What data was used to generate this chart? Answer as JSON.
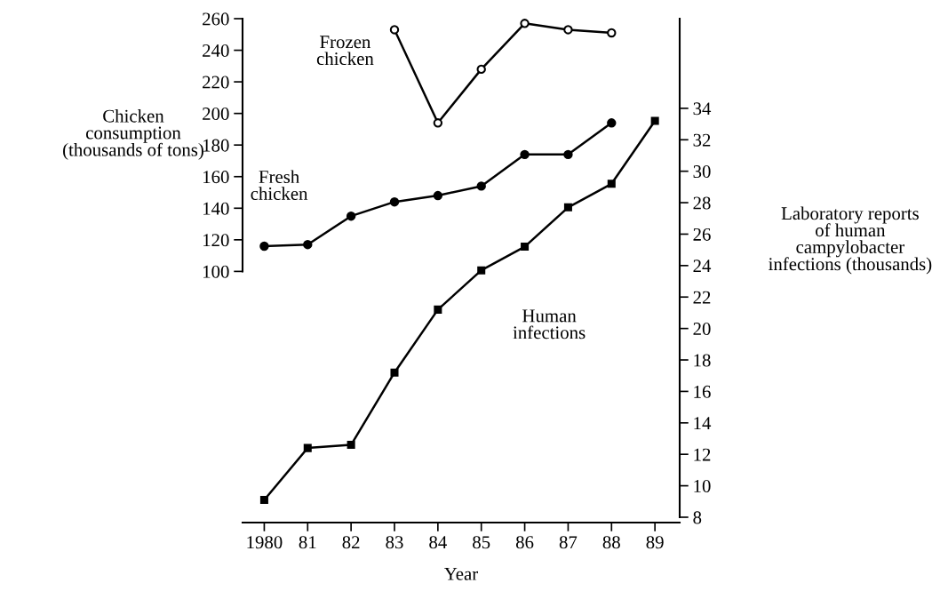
{
  "chart_data": {
    "type": "line",
    "x": [
      1980,
      1981,
      1982,
      1983,
      1984,
      1985,
      1986,
      1987,
      1988,
      1989
    ],
    "xlabel": "Year",
    "ylabel": "Chicken consumption (thousands of tons)",
    "y2label": "Laboratory reports of human campylobacter infections (thousands)",
    "xlim": [
      1979.5,
      1989.57
    ],
    "xticks": [
      {
        "value": 1980,
        "label": "1980"
      },
      {
        "value": 1981,
        "label": "81"
      },
      {
        "value": 1982,
        "label": "82"
      },
      {
        "value": 1983,
        "label": "83"
      },
      {
        "value": 1984,
        "label": "84"
      },
      {
        "value": 1985,
        "label": "85"
      },
      {
        "value": 1986,
        "label": "86"
      },
      {
        "value": 1987,
        "label": "87"
      },
      {
        "value": 1988,
        "label": "88"
      },
      {
        "value": 1989,
        "label": "89"
      }
    ],
    "ylim": [
      -59,
      260
    ],
    "yticks": [
      100,
      120,
      140,
      160,
      180,
      200,
      220,
      240,
      260
    ],
    "y2lim": [
      7.66,
      39.7
    ],
    "y2ticks": [
      8,
      10,
      12,
      14,
      16,
      18,
      20,
      22,
      24,
      26,
      28,
      30,
      32,
      34
    ],
    "grid": false,
    "legend": false,
    "series": [
      {
        "name": "Frozen chicken",
        "color": "#000000",
        "marker": "circle",
        "x": [
          1983,
          1984,
          1985,
          1986,
          1987,
          1988
        ],
        "values": [
          253,
          194,
          228,
          257,
          253,
          251
        ]
      },
      {
        "name": "Fresh chicken",
        "color": "#000000",
        "marker": "circle",
        "x": [
          1980,
          1981,
          1982,
          1983,
          1984,
          1985,
          1986,
          1987,
          1988
        ],
        "values": [
          116,
          117,
          135,
          144,
          148,
          154,
          174,
          174,
          194
        ]
      },
      {
        "name": "Human infections",
        "color": "#000000",
        "marker": "square",
        "axis": "y2",
        "values": [
          9.1,
          12.4,
          12.6,
          17.2,
          21.2,
          23.7,
          25.2,
          27.7,
          29.2,
          33.2
        ]
      }
    ]
  }
}
